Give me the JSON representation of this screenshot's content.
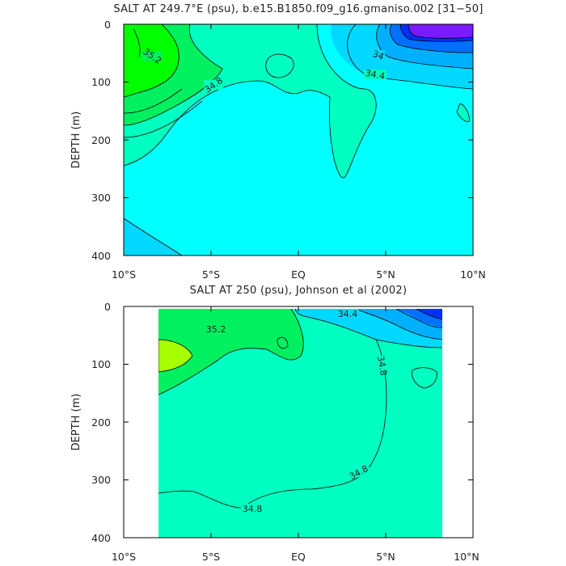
{
  "chart_data": [
    {
      "type": "contour",
      "title": "SALT AT 249.7°E (psu), b.e15.B1850.f09_g16.gmaniso.002 [31−50]",
      "xlabel": "",
      "ylabel": "DEPTH (m)",
      "xlim": [
        -10,
        10
      ],
      "ylim": [
        400,
        0
      ],
      "x_ticks": [
        "10°S",
        "5°S",
        "EQ",
        "5°N",
        "10°N"
      ],
      "y_ticks": [
        "0",
        "100",
        "200",
        "300",
        "400"
      ],
      "contour_labels": [
        "35.2",
        "34.8",
        "34",
        "34.4"
      ],
      "colors": {
        "max_salt": "#00ff00",
        "high": "#00f060",
        "mid": "#00ffc0",
        "base": "#00ffff",
        "low": "#00d8ff",
        "fresh1": "#00b0ff",
        "fresh2": "#0070ff",
        "fresh3": "#0030ff",
        "min_salt": "#7a1aff"
      }
    },
    {
      "type": "contour",
      "title": "SALT AT 250 (psu), Johnson et al (2002)",
      "xlabel": "",
      "ylabel": "DEPTH (m)",
      "xlim": [
        -10,
        10
      ],
      "ylim": [
        400,
        0
      ],
      "data_xlim": [
        -8,
        8.2
      ],
      "data_ylim": [
        410,
        5
      ],
      "x_ticks": [
        "10°S",
        "5°S",
        "EQ",
        "5°N",
        "10°N"
      ],
      "y_ticks": [
        "0",
        "100",
        "200",
        "300",
        "400"
      ],
      "contour_labels": [
        "35.2",
        "34.4",
        "34.8",
        "34.8",
        "34.8"
      ],
      "colors": {
        "max_salt": "#a8ff00",
        "high": "#00f060",
        "mid": "#00ffc0",
        "fresh1": "#00d8ff",
        "fresh2": "#00b0ff",
        "fresh3": "#0070ff",
        "min_salt": "#0030ff"
      }
    }
  ]
}
